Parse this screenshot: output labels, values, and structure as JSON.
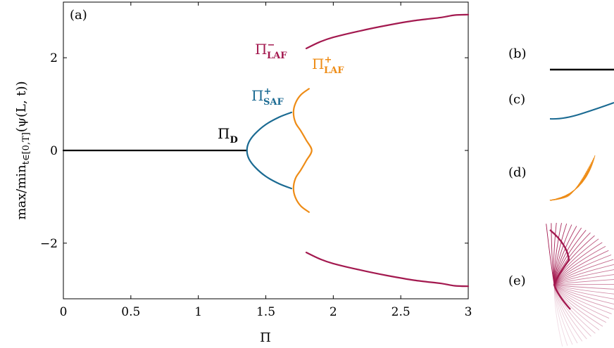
{
  "colors": {
    "D": "#000000",
    "SAF": "#1a6a92",
    "LAF_plus": "#ee8c16",
    "LAF_minus": "#a3194f"
  },
  "panel_labels": {
    "a": "(a)",
    "b": "(b)",
    "c": "(c)",
    "d": "(d)",
    "e": "(e)"
  },
  "branch_labels": {
    "D": {
      "main": "Π",
      "sub": "D",
      "sup": ""
    },
    "SAF": {
      "main": "Π",
      "sub": "SAF",
      "sup": "+"
    },
    "LAF_plus": {
      "main": "Π",
      "sub": "LAF",
      "sup": "+"
    },
    "LAF_minus": {
      "main": "Π",
      "sub": "LAF",
      "sup": "−"
    }
  },
  "chart_data": {
    "type": "line",
    "title": "",
    "xlabel": "Π",
    "ylabel": "max/min_{t∈[0,T]}(ψ(L,t))",
    "ylabel_parts": {
      "pre": "max/min",
      "sub": "t∈[0,T]",
      "post": "(ψ(L, t))"
    },
    "xlim": [
      0,
      3
    ],
    "ylim": [
      -3.2,
      3.2
    ],
    "xticks": [
      0,
      0.5,
      1,
      1.5,
      2,
      2.5,
      3
    ],
    "xtick_labels": [
      "0",
      "0.5",
      "1",
      "1.5",
      "2",
      "2.5",
      "3"
    ],
    "yticks": [
      -2,
      0,
      2
    ],
    "ytick_labels": [
      "−2",
      "0",
      "2"
    ],
    "grid": false,
    "series": [
      {
        "name": "Π_D",
        "key": "D",
        "x": [
          0,
          1.36
        ],
        "y": [
          0,
          0
        ]
      },
      {
        "name": "Π_SAF^+",
        "key": "SAF",
        "x": [
          1.69,
          1.6,
          1.5,
          1.42,
          1.375,
          1.36,
          1.375,
          1.42,
          1.5,
          1.6,
          1.69
        ],
        "y": [
          0.82,
          0.72,
          0.56,
          0.36,
          0.18,
          0,
          -0.18,
          -0.36,
          -0.56,
          -0.72,
          -0.82
        ]
      },
      {
        "name": "Π_LAF^+",
        "key": "LAF_plus",
        "x": [
          1.82,
          1.76,
          1.72,
          1.705,
          1.72,
          1.76,
          1.8,
          1.84,
          1.8,
          1.76,
          1.72,
          1.705,
          1.72,
          1.76,
          1.82
        ],
        "y": [
          1.33,
          1.2,
          1.02,
          0.82,
          0.6,
          0.42,
          0.22,
          0,
          -0.22,
          -0.42,
          -0.6,
          -0.82,
          -1.02,
          -1.2,
          -1.33
        ]
      },
      {
        "name": "Π_LAF^− (upper)",
        "key": "LAF_minus",
        "x": [
          1.8,
          1.9,
          2.0,
          2.2,
          2.4,
          2.6,
          2.8,
          2.9,
          3.0
        ],
        "y": [
          2.2,
          2.34,
          2.44,
          2.58,
          2.7,
          2.8,
          2.87,
          2.92,
          2.93
        ]
      },
      {
        "name": "Π_LAF^− (lower)",
        "key": "LAF_minus",
        "x": [
          1.8,
          1.9,
          2.0,
          2.2,
          2.4,
          2.6,
          2.8,
          2.9,
          3.0
        ],
        "y": [
          -2.2,
          -2.34,
          -2.44,
          -2.58,
          -2.7,
          -2.8,
          -2.87,
          -2.92,
          -2.93
        ]
      }
    ]
  }
}
